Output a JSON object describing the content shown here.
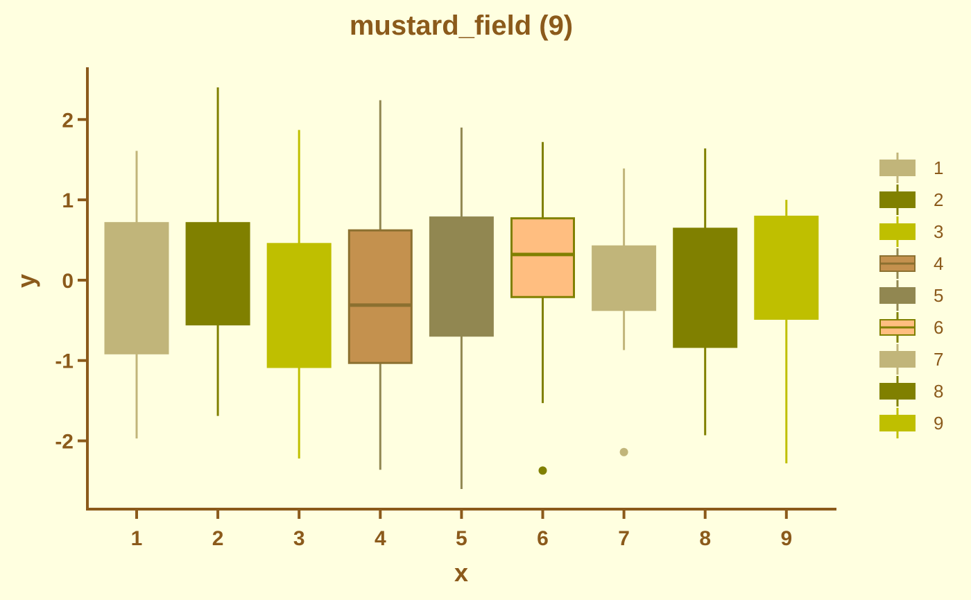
{
  "colors": {
    "background": "#FFFFE0",
    "axis": "#8B5A1B",
    "text": "#8B5A1B"
  },
  "chart_data": {
    "type": "boxplot",
    "title": "mustard_field (9)",
    "xlabel": "x",
    "ylabel": "y",
    "ylim": [
      -2.85,
      2.65
    ],
    "yticks": [
      "-2",
      "-1",
      "0",
      "1",
      "2"
    ],
    "ytick_values": [
      -2,
      -1,
      0,
      1,
      2
    ],
    "categories": [
      "1",
      "2",
      "3",
      "4",
      "5",
      "6",
      "7",
      "8",
      "9"
    ],
    "grid": false,
    "legend": {
      "position": "right",
      "entries": [
        "1",
        "2",
        "3",
        "4",
        "5",
        "6",
        "7",
        "8",
        "9"
      ]
    },
    "series": [
      {
        "name": "1",
        "color": "#C1B57A",
        "q1": -0.91,
        "median": -0.91,
        "q3": 0.71,
        "whisker_low": -1.97,
        "whisker_high": 1.61,
        "outliers": []
      },
      {
        "name": "2",
        "color": "#808000",
        "q1": -0.55,
        "median": -0.55,
        "q3": 0.71,
        "whisker_low": -1.69,
        "whisker_high": 2.4,
        "outliers": []
      },
      {
        "name": "3",
        "color": "#BFBF00",
        "q1": -1.08,
        "median": -1.08,
        "q3": 0.45,
        "whisker_low": -2.22,
        "whisker_high": 1.87,
        "outliers": []
      },
      {
        "name": "4",
        "color": "#C4914E",
        "q1": -1.03,
        "median": -0.31,
        "q3": 0.62,
        "whisker_low": -2.36,
        "whisker_high": 2.24,
        "outliers": []
      },
      {
        "name": "5",
        "color": "#918751",
        "q1": -0.69,
        "median": -0.69,
        "q3": 0.78,
        "whisker_low": -2.6,
        "whisker_high": 1.9,
        "outliers": []
      },
      {
        "name": "6",
        "color": "#FFBE80",
        "q1": -0.21,
        "median": 0.32,
        "q3": 0.77,
        "whisker_low": -1.53,
        "whisker_high": 1.72,
        "outliers": [
          -2.37
        ]
      },
      {
        "name": "7",
        "color": "#C1B57A",
        "q1": -0.37,
        "median": -0.37,
        "q3": 0.42,
        "whisker_low": -0.87,
        "whisker_high": 1.39,
        "outliers": [
          -2.14
        ]
      },
      {
        "name": "8",
        "color": "#808000",
        "q1": -0.83,
        "median": -0.83,
        "q3": 0.64,
        "whisker_low": -1.93,
        "whisker_high": 1.64,
        "outliers": []
      },
      {
        "name": "9",
        "color": "#BFBF00",
        "q1": -0.48,
        "median": -0.48,
        "q3": 0.79,
        "whisker_low": -2.28,
        "whisker_high": 1.0,
        "outliers": []
      }
    ]
  }
}
